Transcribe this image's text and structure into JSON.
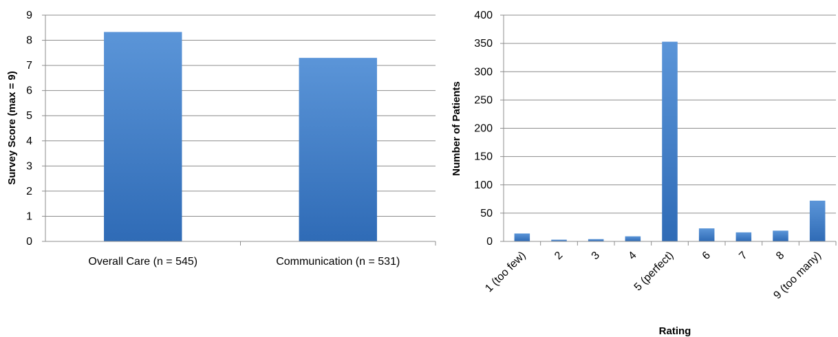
{
  "colors": {
    "bar": "#3f80cd",
    "bar_light": "#5b95d8",
    "bar_dark": "#2f6bb6",
    "grid": "#8c8c8c",
    "axis": "#8c8c8c"
  },
  "chart_data": [
    {
      "type": "bar",
      "categories": [
        "Overall Care (n = 545)",
        "Communication (n = 531)"
      ],
      "values": [
        8.33,
        7.3
      ],
      "title": "",
      "xlabel": "",
      "ylabel": "Survey Score (max = 9)",
      "ylim": [
        0,
        9
      ],
      "yticks": [
        0,
        1,
        2,
        3,
        4,
        5,
        6,
        7,
        8,
        9
      ],
      "grid": true,
      "legend": "none"
    },
    {
      "type": "bar",
      "categories": [
        "1 (too few)",
        "2",
        "3",
        "4",
        "5 (perfect)",
        "6",
        "7",
        "8",
        "9 (too many)"
      ],
      "values": [
        14,
        3,
        4,
        9,
        353,
        23,
        16,
        19,
        72
      ],
      "title": "",
      "xlabel": "Rating",
      "ylabel": "Number of Patients",
      "ylim": [
        0,
        400
      ],
      "yticks": [
        0,
        50,
        100,
        150,
        200,
        250,
        300,
        350,
        400
      ],
      "grid": true,
      "legend": "none"
    }
  ]
}
